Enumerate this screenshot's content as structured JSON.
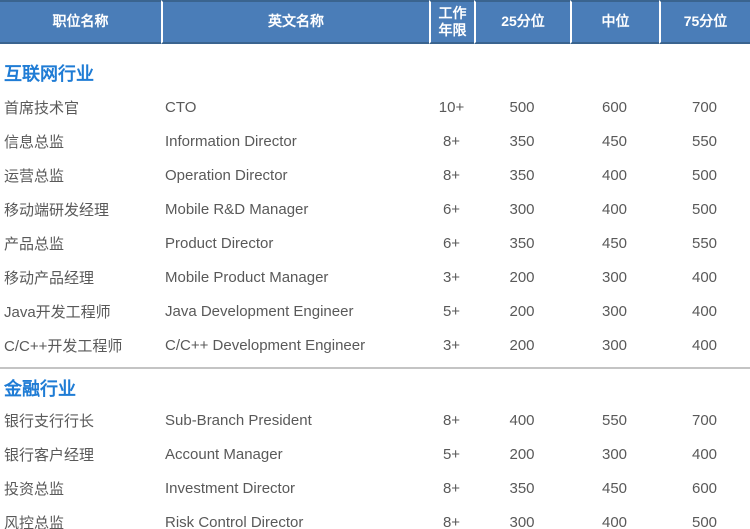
{
  "colors": {
    "header_bg": "#4a7db8",
    "header_border": "#3a648f",
    "header_text": "#ffffff",
    "section_title": "#1f7cd5",
    "body_text": "#595959",
    "divider": "#c4c4c4",
    "page_bg": "#ffffff"
  },
  "table": {
    "column_keys": [
      "position",
      "english",
      "years",
      "p25",
      "median",
      "p75"
    ],
    "columns": [
      "职位名称",
      "英文名称",
      "工作年限",
      "25分位",
      "中位",
      "75分位"
    ],
    "sections": [
      {
        "title": "互联网行业",
        "rows": [
          {
            "position": "首席技术官",
            "english": "CTO",
            "years": "10+",
            "p25": "500",
            "median": "600",
            "p75": "700"
          },
          {
            "position": "信息总监",
            "english": "Information Director",
            "years": "8+",
            "p25": "350",
            "median": "450",
            "p75": "550"
          },
          {
            "position": "运营总监",
            "english": "Operation Director",
            "years": "8+",
            "p25": "350",
            "median": "400",
            "p75": "500"
          },
          {
            "position": "移动端研发经理",
            "english": "Mobile R&D Manager",
            "years": "6+",
            "p25": "300",
            "median": "400",
            "p75": "500"
          },
          {
            "position": "产品总监",
            "english": "Product Director",
            "years": "6+",
            "p25": "350",
            "median": "450",
            "p75": "550"
          },
          {
            "position": "移动产品经理",
            "english": "Mobile Product Manager",
            "years": "3+",
            "p25": "200",
            "median": "300",
            "p75": "400"
          },
          {
            "position": "Java开发工程师",
            "english": "Java Development Engineer",
            "years": "5+",
            "p25": "200",
            "median": "300",
            "p75": "400"
          },
          {
            "position": "C/C++开发工程师",
            "english": "C/C++ Development Engineer",
            "years": "3+",
            "p25": "200",
            "median": "300",
            "p75": "400"
          }
        ]
      },
      {
        "title": "金融行业",
        "rows": [
          {
            "position": "银行支行行长",
            "english": "Sub-Branch President",
            "years": "8+",
            "p25": "400",
            "median": "550",
            "p75": "700"
          },
          {
            "position": "银行客户经理",
            "english": "Account Manager",
            "years": "5+",
            "p25": "200",
            "median": "300",
            "p75": "400"
          },
          {
            "position": "投资总监",
            "english": "Investment Director",
            "years": "8+",
            "p25": "350",
            "median": "450",
            "p75": "600"
          },
          {
            "position": "风控总监",
            "english": "Risk Control Director",
            "years": "8+",
            "p25": "300",
            "median": "400",
            "p75": "500"
          }
        ]
      }
    ]
  }
}
